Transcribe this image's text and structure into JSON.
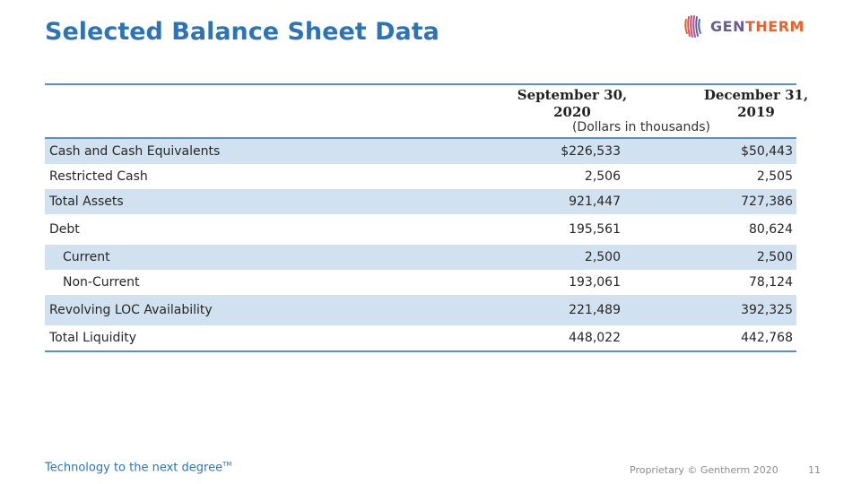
{
  "slide": {
    "title": "Selected Balance Sheet Data",
    "logo": {
      "part1": "GEN",
      "part2": "THERM",
      "icon": "gentherm-swirl-icon"
    }
  },
  "table": {
    "columns": [
      "September 30, 2020",
      "December 31, 2019"
    ],
    "units": "(Dollars in thousands)",
    "rows": [
      {
        "label": "Cash and Cash Equivalents",
        "v1": "$226,533",
        "v2": "$50,443"
      },
      {
        "label": "Restricted Cash",
        "v1": "2,506",
        "v2": "2,505"
      },
      {
        "label": "Total Assets",
        "v1": "921,447",
        "v2": "727,386"
      },
      {
        "label": "Debt",
        "v1": "195,561",
        "v2": "80,624"
      },
      {
        "label": "Current",
        "v1": "2,500",
        "v2": "2,500"
      },
      {
        "label": "Non-Current",
        "v1": "193,061",
        "v2": "78,124"
      },
      {
        "label": "Revolving LOC Availability",
        "v1": "221,489",
        "v2": "392,325"
      },
      {
        "label": "Total Liquidity",
        "v1": "448,022",
        "v2": "442,768"
      }
    ]
  },
  "footer": {
    "tagline": "Technology to the next degree",
    "trademark": "TM",
    "copyright": "Proprietary © Gentherm 2020",
    "page": "11"
  },
  "colors": {
    "title": "#2e74b5",
    "rule": "#5b8ec9",
    "row_shade": "#d2e1f0",
    "logo_gen": "#6a5d93",
    "logo_therm": "#e8632b"
  }
}
